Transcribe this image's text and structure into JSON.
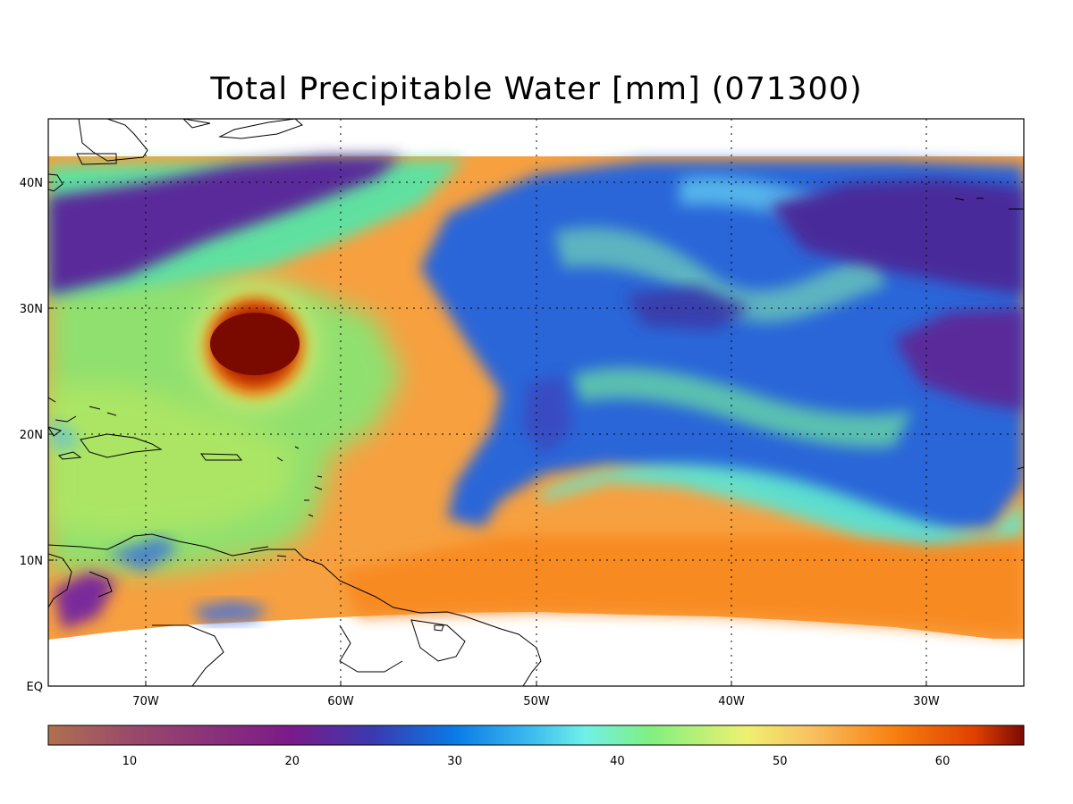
{
  "title": "Total Precipitable Water [mm]  (071300)",
  "map": {
    "lat_labels": [
      "40N",
      "30N",
      "20N",
      "10N",
      "EQ"
    ],
    "lon_labels": [
      "70W",
      "60W",
      "50W",
      "40W",
      "30W"
    ]
  },
  "colorbar": {
    "range": [
      5,
      65
    ],
    "tick_labels": [
      "10",
      "20",
      "30",
      "40",
      "50",
      "60"
    ],
    "stops": [
      {
        "v": 5,
        "color": "#b07050"
      },
      {
        "v": 10,
        "color": "#9a4a6a"
      },
      {
        "v": 20,
        "color": "#7a1a8a"
      },
      {
        "v": 25,
        "color": "#3a3ab0"
      },
      {
        "v": 30,
        "color": "#0a7ae6"
      },
      {
        "v": 35,
        "color": "#40c0f0"
      },
      {
        "v": 38,
        "color": "#70f0e8"
      },
      {
        "v": 42,
        "color": "#80f080"
      },
      {
        "v": 48,
        "color": "#f0f070"
      },
      {
        "v": 52,
        "color": "#f8c060"
      },
      {
        "v": 57,
        "color": "#f88010"
      },
      {
        "v": 62,
        "color": "#e04000"
      },
      {
        "v": 65,
        "color": "#7a0a00"
      }
    ]
  },
  "colors": {
    "moist_orange": "#f7a040",
    "green": "#70e070",
    "dry_blue": "#2a66d8",
    "very_dry_purple": "#5a2a9a",
    "storm_core": "#7a0a00"
  }
}
